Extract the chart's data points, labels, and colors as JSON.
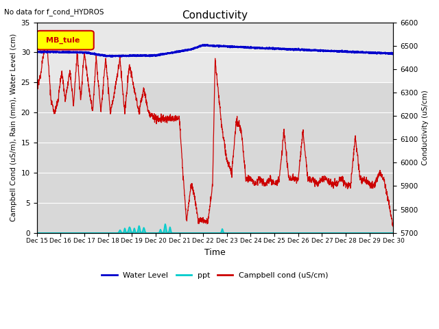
{
  "title": "Conductivity",
  "note": "No data for f_cond_HYDROS",
  "legend_label": "MB_tule",
  "xlabel": "Time",
  "ylabel_left": "Campbell Cond (uS/m), Rain (mm), Water Level (cm)",
  "ylabel_right": "Conductivity (uS/cm)",
  "ylim_left": [
    0,
    35
  ],
  "ylim_right": [
    5700,
    6600
  ],
  "yticks_left": [
    0,
    5,
    10,
    15,
    20,
    25,
    30,
    35
  ],
  "yticks_right": [
    5700,
    5800,
    5900,
    6000,
    6100,
    6200,
    6300,
    6400,
    6500,
    6600
  ],
  "xtick_labels": [
    "Dec 15",
    "Dec 16",
    "Dec 17",
    "Dec 18",
    "Dec 19",
    "Dec 20",
    "Dec 21",
    "Dec 22",
    "Dec 23",
    "Dec 24",
    "Dec 25",
    "Dec 26",
    "Dec 27",
    "Dec 28",
    "Dec 29",
    "Dec 30"
  ],
  "plot_bg_upper": "#e8e8e8",
  "plot_bg_lower": "#d0d0d0",
  "water_level_color": "#0000cc",
  "ppt_color": "#00cccc",
  "campbell_color": "#cc0000",
  "legend_box_facecolor": "#ffff00",
  "legend_box_edgecolor": "#cc0000",
  "legend_label_color": "#cc0000"
}
